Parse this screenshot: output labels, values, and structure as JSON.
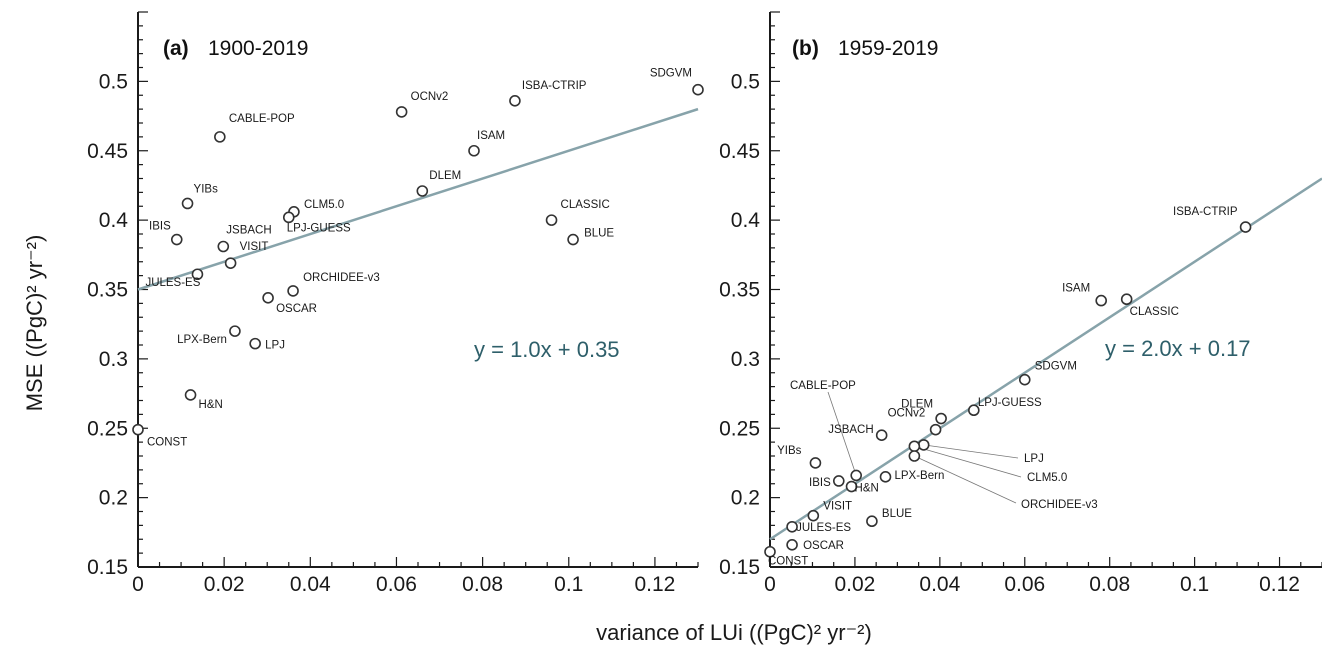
{
  "colors": {
    "fit": "#87A3AA",
    "equation": "#2E5F6A",
    "axis": "#1a1a1a",
    "marker": "#333333"
  },
  "chart_data": [
    {
      "type": "scatter",
      "tag": "(a)",
      "period": "1900-2019",
      "xlim": [
        0,
        0.13
      ],
      "ylim": [
        0.15,
        0.55
      ],
      "xticks": [
        "0",
        "0.02",
        "0.04",
        "0.06",
        "0.08",
        "0.1",
        "0.12"
      ],
      "yticks": [
        "0.15",
        "0.2",
        "0.25",
        "0.3",
        "0.35",
        "0.4",
        "0.45",
        "0.5"
      ],
      "fit": {
        "slope": 1.0,
        "intercept": 0.35,
        "label": "y = 1.0x + 0.35"
      },
      "points": [
        {
          "name": "CABLE-POP",
          "x": 0.019,
          "y": 0.46
        },
        {
          "name": "OCNv2",
          "x": 0.0612,
          "y": 0.478
        },
        {
          "name": "ISBA-CTRIP",
          "x": 0.0875,
          "y": 0.486
        },
        {
          "name": "SDGVM",
          "x": 0.13,
          "y": 0.494
        },
        {
          "name": "ISAM",
          "x": 0.078,
          "y": 0.45
        },
        {
          "name": "DLEM",
          "x": 0.066,
          "y": 0.421
        },
        {
          "name": "YIBs",
          "x": 0.0115,
          "y": 0.412
        },
        {
          "name": "CLM5.0",
          "x": 0.0362,
          "y": 0.406
        },
        {
          "name": "LPJ-GUESS",
          "x": 0.035,
          "y": 0.402
        },
        {
          "name": "CLASSIC",
          "x": 0.096,
          "y": 0.4
        },
        {
          "name": "BLUE",
          "x": 0.101,
          "y": 0.386
        },
        {
          "name": "IBIS",
          "x": 0.009,
          "y": 0.386
        },
        {
          "name": "JSBACH",
          "x": 0.0198,
          "y": 0.381
        },
        {
          "name": "VISIT",
          "x": 0.0215,
          "y": 0.369
        },
        {
          "name": "JULES-ES",
          "x": 0.0138,
          "y": 0.361
        },
        {
          "name": "ORCHIDEE-v3",
          "x": 0.036,
          "y": 0.349
        },
        {
          "name": "OSCAR",
          "x": 0.0302,
          "y": 0.344
        },
        {
          "name": "LPX-Bern",
          "x": 0.0225,
          "y": 0.32
        },
        {
          "name": "LPJ",
          "x": 0.0272,
          "y": 0.311
        },
        {
          "name": "H&N",
          "x": 0.0122,
          "y": 0.274
        },
        {
          "name": "CONST",
          "x": 0.0,
          "y": 0.249
        }
      ]
    },
    {
      "type": "scatter",
      "tag": "(b)",
      "period": "1959-2019",
      "xlim": [
        0,
        0.13
      ],
      "ylim": [
        0.15,
        0.55
      ],
      "xticks": [
        "0",
        "0.02",
        "0.04",
        "0.06",
        "0.08",
        "0.1",
        "0.12"
      ],
      "yticks": [
        "0.15",
        "0.2",
        "0.25",
        "0.3",
        "0.35",
        "0.4",
        "0.45",
        "0.5"
      ],
      "fit": {
        "slope": 2.0,
        "intercept": 0.17,
        "label": "y = 2.0x + 0.17"
      },
      "points": [
        {
          "name": "ISBA-CTRIP",
          "x": 0.112,
          "y": 0.395
        },
        {
          "name": "ISAM",
          "x": 0.078,
          "y": 0.342
        },
        {
          "name": "CLASSIC",
          "x": 0.084,
          "y": 0.343
        },
        {
          "name": "SDGVM",
          "x": 0.06,
          "y": 0.285
        },
        {
          "name": "LPJ-GUESS",
          "x": 0.048,
          "y": 0.263
        },
        {
          "name": "DLEM",
          "x": 0.0403,
          "y": 0.257
        },
        {
          "name": "OCNv2",
          "x": 0.039,
          "y": 0.249
        },
        {
          "name": "JSBACH",
          "x": 0.0263,
          "y": 0.245
        },
        {
          "name": "LPJ",
          "x": 0.0362,
          "y": 0.238
        },
        {
          "name": "CLM5.0",
          "x": 0.034,
          "y": 0.237
        },
        {
          "name": "ORCHIDEE-v3",
          "x": 0.034,
          "y": 0.23
        },
        {
          "name": "YIBs",
          "x": 0.0107,
          "y": 0.225
        },
        {
          "name": "CABLE-POP",
          "x": 0.0203,
          "y": 0.216
        },
        {
          "name": "LPX-Bern",
          "x": 0.0272,
          "y": 0.215
        },
        {
          "name": "IBIS",
          "x": 0.0162,
          "y": 0.212
        },
        {
          "name": "H&N",
          "x": 0.0192,
          "y": 0.208
        },
        {
          "name": "VISIT",
          "x": 0.0102,
          "y": 0.187
        },
        {
          "name": "BLUE",
          "x": 0.024,
          "y": 0.183
        },
        {
          "name": "JULES-ES",
          "x": 0.0052,
          "y": 0.179
        },
        {
          "name": "OSCAR",
          "x": 0.0052,
          "y": 0.166
        },
        {
          "name": "CONST",
          "x": 0.0,
          "y": 0.161
        }
      ]
    }
  ],
  "axes": {
    "ylabel": "MSE ((PgC)² yr⁻²)",
    "xlabel": "variance of LUi ((PgC)² yr⁻²)"
  }
}
